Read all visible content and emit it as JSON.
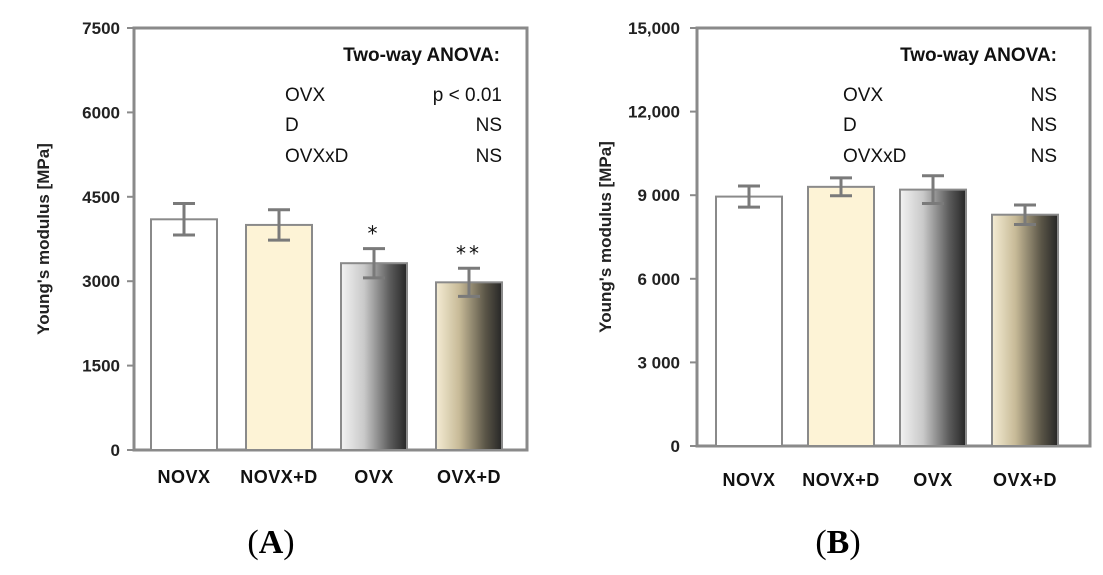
{
  "chart_data": [
    {
      "type": "bar",
      "panel": "A",
      "panel_label": "A",
      "categories": [
        "NOVX",
        "NOVX+D",
        "OVX",
        "OVX+D"
      ],
      "values": [
        4100,
        4000,
        3320,
        2980
      ],
      "errors": [
        280,
        270,
        260,
        250
      ],
      "significance": [
        "",
        "",
        "*",
        "**"
      ],
      "fills": [
        "white",
        "cream",
        "gray-gradient",
        "tan-gradient"
      ],
      "ylabel": "Young's modulus [MPa]",
      "ylim": [
        0,
        7500
      ],
      "yticks": [
        0,
        1500,
        3000,
        4500,
        6000,
        7500
      ],
      "yticklabels": [
        "0",
        "1500",
        "3000",
        "4500",
        "6000",
        "7500"
      ],
      "anova": {
        "title": "Two-way ANOVA:",
        "rows": [
          {
            "factor": "OVX",
            "result": "p < 0.01"
          },
          {
            "factor": "D",
            "result": "NS"
          },
          {
            "factor": "OVXxD",
            "result": "NS"
          }
        ]
      }
    },
    {
      "type": "bar",
      "panel": "B",
      "panel_label": "B",
      "categories": [
        "NOVX",
        "NOVX+D",
        "OVX",
        "OVX+D"
      ],
      "values": [
        8950,
        9300,
        9200,
        8300
      ],
      "errors": [
        380,
        320,
        500,
        350
      ],
      "significance": [
        "",
        "",
        "",
        ""
      ],
      "fills": [
        "white",
        "cream",
        "gray-gradient",
        "tan-gradient"
      ],
      "ylabel": "Young's modulus [MPa]",
      "ylim": [
        0,
        15000
      ],
      "yticks": [
        0,
        3000,
        6000,
        9000,
        12000,
        15000
      ],
      "yticklabels": [
        "0",
        "3 000",
        "6 000",
        "9 000",
        "12,000",
        "15,000"
      ],
      "anova": {
        "title": "Two-way ANOVA:",
        "rows": [
          {
            "factor": "OVX",
            "result": "NS"
          },
          {
            "factor": "D",
            "result": "NS"
          },
          {
            "factor": "OVXxD",
            "result": "NS"
          }
        ]
      }
    }
  ],
  "colors": {
    "axis": "#8a8a8a",
    "bar_outline": "#8a8a8a",
    "cream": "#fdf3d6",
    "error": "#7a7a7a"
  }
}
